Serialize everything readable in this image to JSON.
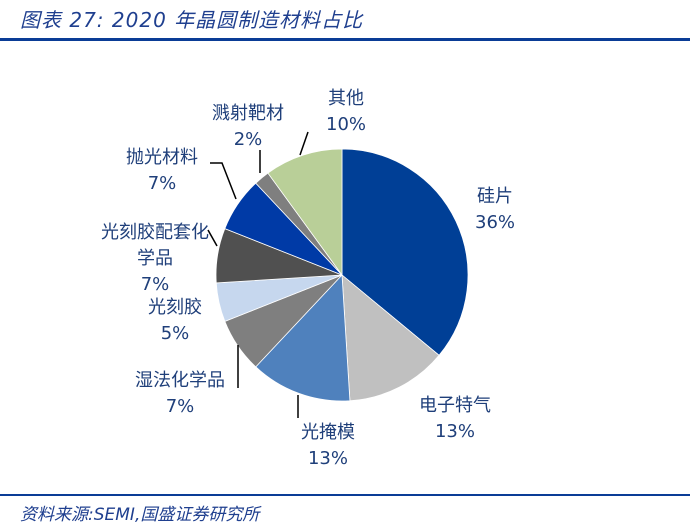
{
  "title": "图表 27:  2020 年晶圆制造材料占比",
  "source": "资料来源:SEMI,国盛证券研究所",
  "chart_data": {
    "type": "pie",
    "categories": [
      "硅片",
      "电子特气",
      "光掩模",
      "湿法化学品",
      "光刻胶",
      "光刻胶配套化学品",
      "抛光材料",
      "溅射靶材",
      "其他"
    ],
    "values": [
      36,
      13,
      13,
      7,
      5,
      7,
      7,
      2,
      10
    ],
    "value_labels": [
      "36%",
      "13%",
      "13%",
      "7%",
      "5%",
      "7%",
      "7%",
      "2%",
      "10%"
    ],
    "colors": [
      "#003f96",
      "#c0c0c0",
      "#4f81bd",
      "#7f7f7f",
      "#c6d7ee",
      "#505050",
      "#003aa6",
      "#7f7f7f",
      "#b9cf98"
    ],
    "start": "12 o'clock, clockwise",
    "legend": "none"
  }
}
